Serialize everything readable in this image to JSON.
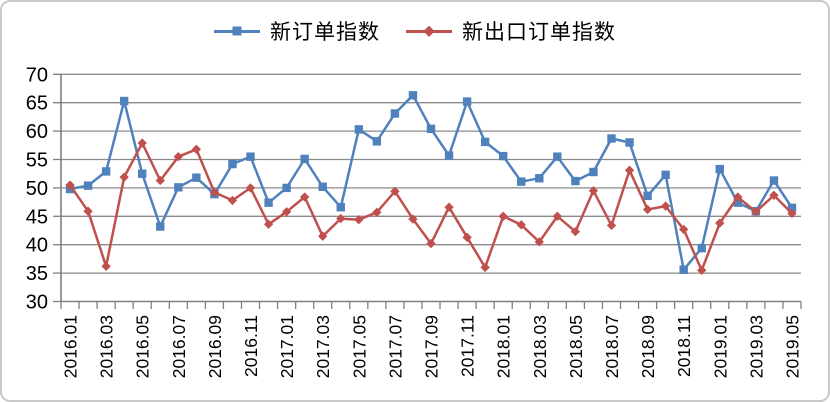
{
  "chart_data": {
    "type": "line",
    "title": "",
    "categories": [
      "2016.01",
      "2016.02",
      "2016.03",
      "2016.04",
      "2016.05",
      "2016.06",
      "2016.07",
      "2016.08",
      "2016.09",
      "2016.10",
      "2016.11",
      "2016.12",
      "2017.01",
      "2017.02",
      "2017.03",
      "2017.04",
      "2017.05",
      "2017.06",
      "2017.07",
      "2017.08",
      "2017.09",
      "2017.10",
      "2017.11",
      "2017.12",
      "2018.01",
      "2018.02",
      "2018.03",
      "2018.04",
      "2018.05",
      "2018.06",
      "2018.07",
      "2018.08",
      "2018.09",
      "2018.10",
      "2018.11",
      "2018.12",
      "2019.01",
      "2019.02",
      "2019.03",
      "2019.04",
      "2019.05"
    ],
    "x_tick_labels": [
      "2016.01",
      "2016.03",
      "2016.05",
      "2016.07",
      "2016.09",
      "2016.11",
      "2017.01",
      "2017.03",
      "2017.05",
      "2017.07",
      "2017.09",
      "2017.11",
      "2018.01",
      "2018.03",
      "2018.05",
      "2018.07",
      "2018.09",
      "2018.11",
      "2019.01",
      "2019.03",
      "2019.05"
    ],
    "series": [
      {
        "name": "新订单指数",
        "color": "#4F81BD",
        "marker": "square",
        "values": [
          49.8,
          50.4,
          52.9,
          65.3,
          52.5,
          43.2,
          50.1,
          51.8,
          48.9,
          54.2,
          55.5,
          47.4,
          50.0,
          55.1,
          50.2,
          46.6,
          60.3,
          58.2,
          63.1,
          66.3,
          60.4,
          55.7,
          65.2,
          58.1,
          55.6,
          51.1,
          51.7,
          55.5,
          51.2,
          52.8,
          58.7,
          58.0,
          48.6,
          52.3,
          35.6,
          39.4,
          53.3,
          47.4,
          45.9,
          51.3,
          46.5
        ]
      },
      {
        "name": "新出口订单指数",
        "color": "#C0504D",
        "marker": "diamond",
        "values": [
          50.5,
          45.9,
          36.2,
          51.9,
          57.9,
          51.3,
          55.5,
          56.8,
          49.2,
          47.8,
          50.0,
          43.6,
          45.8,
          48.4,
          41.5,
          44.6,
          44.4,
          45.7,
          49.4,
          44.5,
          40.2,
          46.6,
          41.3,
          36.0,
          45.0,
          43.5,
          40.5,
          45.0,
          42.3,
          49.5,
          43.4,
          53.1,
          46.2,
          46.8,
          42.7,
          35.5,
          43.8,
          48.4,
          45.8,
          48.7,
          45.5
        ]
      }
    ],
    "xlabel": "",
    "ylabel": "",
    "ylim": [
      30,
      70
    ],
    "y_ticks": [
      30,
      35,
      40,
      45,
      50,
      55,
      60,
      65,
      70
    ],
    "grid": true,
    "legend_position": "top",
    "colors": {
      "grid": "#8a8a8a",
      "axis": "#7f7f7f",
      "label": "#000000",
      "border": "#c9c9c9",
      "background": "#ffffff"
    }
  }
}
